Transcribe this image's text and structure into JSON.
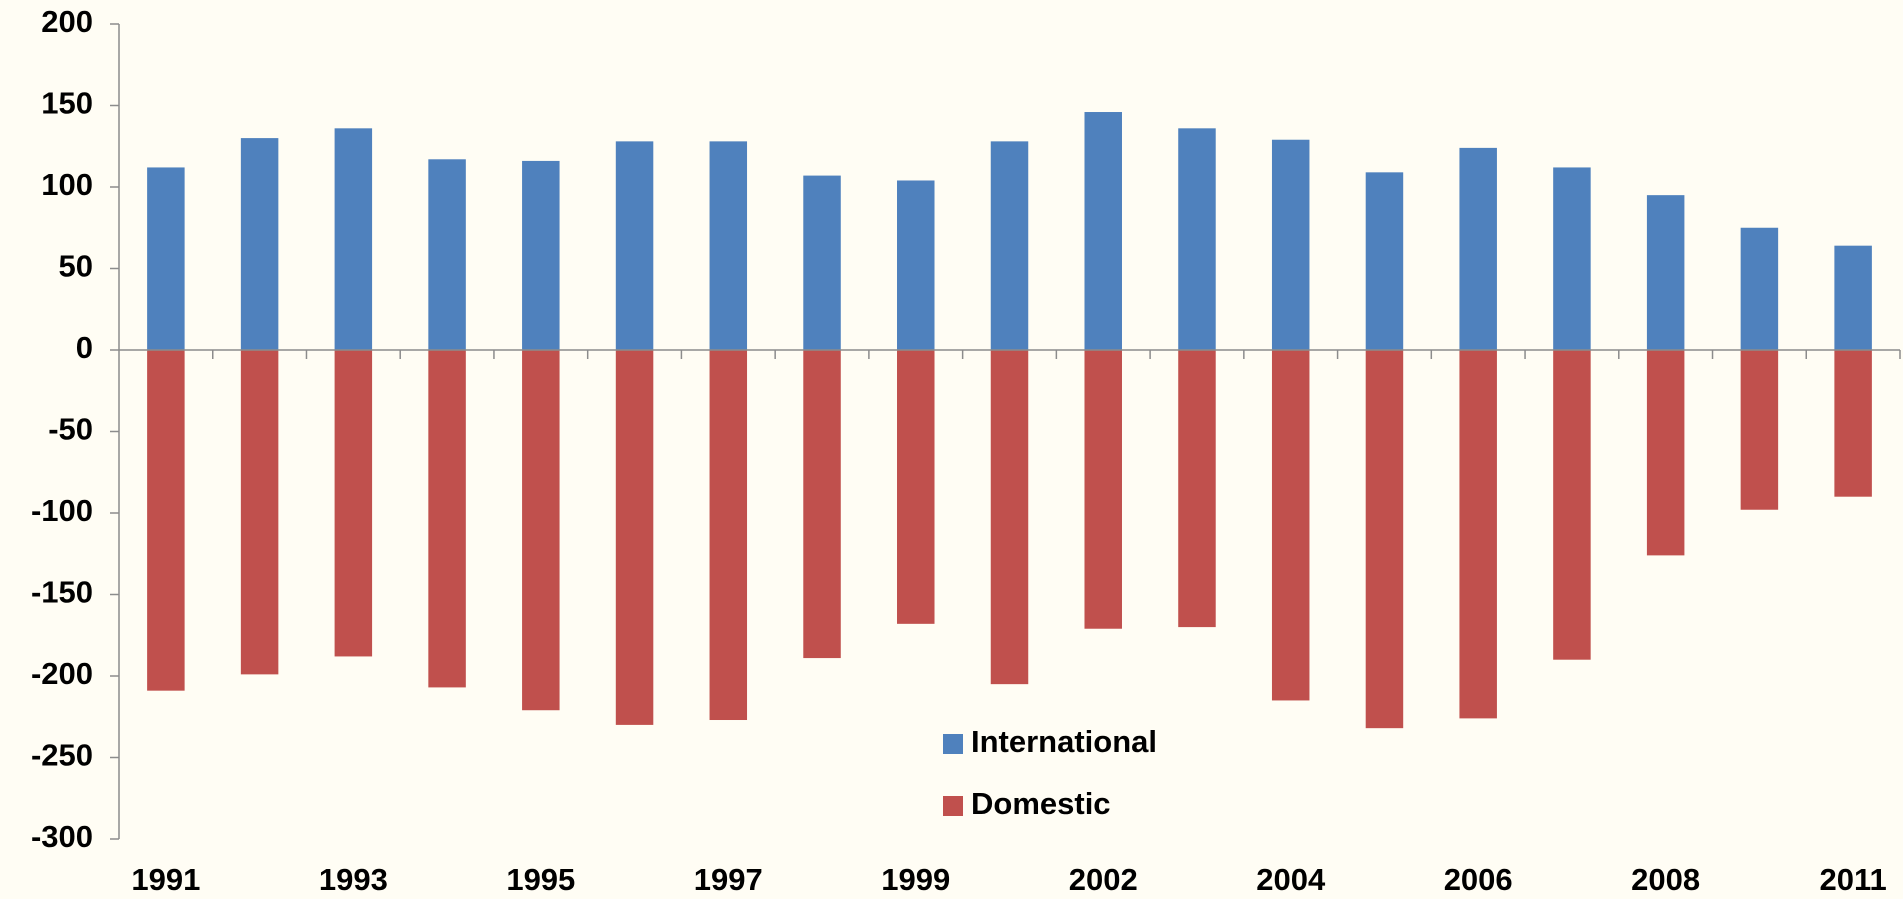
{
  "chart_data": {
    "type": "bar",
    "categories": [
      "1991",
      null,
      "1993",
      null,
      "1995",
      null,
      "1997",
      null,
      "1999",
      null,
      "2002",
      null,
      "2004",
      null,
      "2006",
      null,
      "2008",
      null,
      "2011"
    ],
    "series": [
      {
        "name": "International",
        "color": "#4f81bd",
        "values": [
          112,
          130,
          136,
          117,
          116,
          128,
          128,
          107,
          104,
          128,
          146,
          136,
          129,
          109,
          124,
          112,
          95,
          75,
          64
        ]
      },
      {
        "name": "Domestic",
        "color": "#c0504d",
        "values": [
          -209,
          -199,
          -188,
          -207,
          -221,
          -230,
          -227,
          -189,
          -168,
          -205,
          -171,
          -170,
          -215,
          -232,
          -226,
          -190,
          -126,
          -98,
          -90
        ]
      }
    ],
    "ylim": [
      -300,
      200
    ],
    "yticks": [
      -300,
      -250,
      -200,
      -150,
      -100,
      -50,
      0,
      50,
      100,
      150,
      200
    ],
    "grid": false,
    "legend": "bottom-center"
  }
}
